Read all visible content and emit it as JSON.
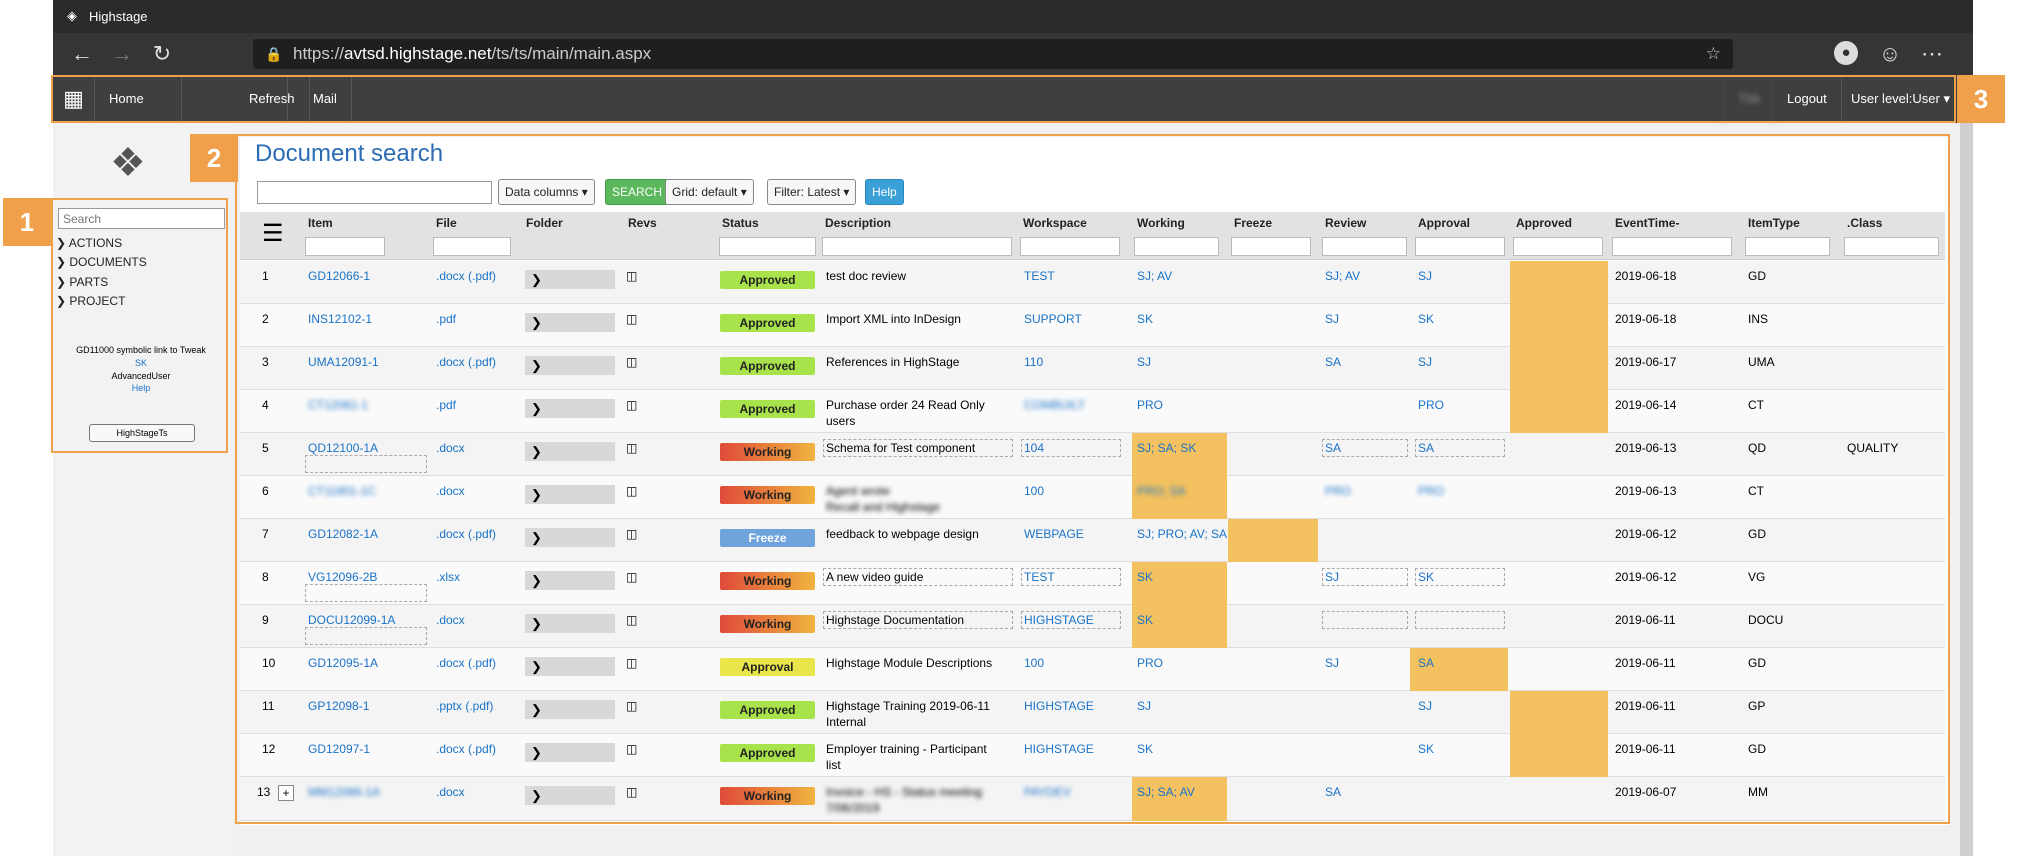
{
  "browser": {
    "title": "Highstage",
    "url_prefix": "https://",
    "url_host": "avtsd.highstage.net",
    "url_path": "/ts/ts/main/main.aspx"
  },
  "menu": {
    "home": "Home",
    "refresh": "Refresh",
    "mail": "Mail",
    "logout": "Logout",
    "user_level": "User level:User",
    "username": "Tbb"
  },
  "badges": [
    "1",
    "2",
    "3"
  ],
  "left_panel": {
    "search_placeholder": "Search",
    "tree": [
      "ACTIONS",
      "DOCUMENTS",
      "PARTS",
      "PROJECT"
    ],
    "info_line": "GD11000 symbolic link to Tweak",
    "user_initials": "SK",
    "user_role": "AdvancedUser",
    "help": "Help",
    "button": "HighStageTs"
  },
  "main": {
    "title": "Document search",
    "data_columns": "Data columns",
    "search": "SEARCH",
    "grid": "Grid: default",
    "filter": "Filter: Latest",
    "help": "Help"
  },
  "columns": [
    "Item",
    "File",
    "Folder",
    "Revs",
    "Status",
    "Description",
    "Workspace",
    "Working",
    "Freeze",
    "Review",
    "Approval",
    "Approved",
    "EventTime-",
    "ItemType",
    ".Class"
  ],
  "rows": [
    {
      "n": "1",
      "item": "GD12066-1",
      "file": ".docx (.pdf)",
      "status": "Approved",
      "desc": "test doc review",
      "desc2": "",
      "ws": "TEST",
      "working": "SJ; AV",
      "freeze": "",
      "review": "SJ; AV",
      "approval": "SJ",
      "time": "2019-06-18",
      "type": "GD",
      "cls": ""
    },
    {
      "n": "2",
      "item": "INS12102-1",
      "file": ".pdf",
      "status": "Approved",
      "desc": "Import XML into InDesign",
      "desc2": "",
      "ws": "SUPPORT",
      "working": "SK",
      "freeze": "",
      "review": "SJ",
      "approval": "SK",
      "time": "2019-06-18",
      "type": "INS",
      "cls": ""
    },
    {
      "n": "3",
      "item": "UMA12091-1",
      "file": ".docx (.pdf)",
      "status": "Approved",
      "desc": "References in HighStage",
      "desc2": "",
      "ws": "110",
      "working": "SJ",
      "freeze": "",
      "review": "SA",
      "approval": "SJ",
      "time": "2019-06-17",
      "type": "UMA",
      "cls": ""
    },
    {
      "n": "4",
      "item": "CT12081-1",
      "file": ".pdf",
      "status": "Approved",
      "desc": "Purchase order 24 Read Only",
      "desc2": "users",
      "ws": "COMBUILT",
      "working": "PRO",
      "freeze": "",
      "review": "",
      "approval": "PRO",
      "time": "2019-06-14",
      "type": "CT",
      "cls": ""
    },
    {
      "n": "5",
      "item": "QD12100-1A",
      "file": ".docx",
      "status": "Working",
      "desc": "Schema for Test component",
      "desc2": "",
      "ws": "104",
      "working": "SJ; SA; SK",
      "freeze": "",
      "review": "SA",
      "approval": "SA",
      "time": "2019-06-13",
      "type": "QD",
      "cls": "QUALITY"
    },
    {
      "n": "6",
      "item": "CT11801-1C",
      "file": ".docx",
      "status": "Working",
      "desc": "Agent wrote",
      "desc2": "Recall and Highstage",
      "ws": "100",
      "working": "PRO; SA",
      "freeze": "",
      "review": "PRO",
      "approval": "PRO",
      "time": "2019-06-13",
      "type": "CT",
      "cls": ""
    },
    {
      "n": "7",
      "item": "GD12082-1A",
      "file": ".docx (.pdf)",
      "status": "Freeze",
      "desc": "feedback to webpage design",
      "desc2": "",
      "ws": "WEBPAGE",
      "working": "SJ; PRO; AV; SA",
      "freeze": "",
      "review": "",
      "approval": "",
      "time": "2019-06-12",
      "type": "GD",
      "cls": ""
    },
    {
      "n": "8",
      "item": "VG12096-2B",
      "file": ".xlsx",
      "status": "Working",
      "desc": "A new video guide",
      "desc2": "",
      "ws": "TEST",
      "working": "SK",
      "freeze": "",
      "review": "SJ",
      "approval": "SK",
      "time": "2019-06-12",
      "type": "VG",
      "cls": ""
    },
    {
      "n": "9",
      "item": "DOCU12099-1A",
      "file": ".docx",
      "status": "Working",
      "desc": "Highstage Documentation",
      "desc2": "",
      "ws": "HIGHSTAGE",
      "working": "SK",
      "freeze": "",
      "review": "",
      "approval": "",
      "time": "2019-06-11",
      "type": "DOCU",
      "cls": ""
    },
    {
      "n": "10",
      "item": "GD12095-1A",
      "file": ".docx (.pdf)",
      "status": "Approval",
      "desc": "Highstage Module Descriptions",
      "desc2": "",
      "ws": "100",
      "working": "PRO",
      "freeze": "",
      "review": "SJ",
      "approval": "SA",
      "time": "2019-06-11",
      "type": "GD",
      "cls": ""
    },
    {
      "n": "11",
      "item": "GP12098-1",
      "file": ".pptx (.pdf)",
      "status": "Approved",
      "desc": "Highstage Training 2019-06-11",
      "desc2": "Internal",
      "ws": "HIGHSTAGE",
      "working": "SJ",
      "freeze": "",
      "review": "",
      "approval": "SJ",
      "time": "2019-06-11",
      "type": "GP",
      "cls": ""
    },
    {
      "n": "12",
      "item": "GD12097-1",
      "file": ".docx (.pdf)",
      "status": "Approved",
      "desc": "Employer training - Participant",
      "desc2": "list",
      "ws": "HIGHSTAGE",
      "working": "SK",
      "freeze": "",
      "review": "",
      "approval": "SK",
      "time": "2019-06-11",
      "type": "GD",
      "cls": ""
    },
    {
      "n": "13",
      "item": "MM12086-1A",
      "file": ".docx",
      "status": "Working",
      "desc": "Invoice - HS - Status meeting",
      "desc2": "7/06/2019",
      "ws": "PAYDEV",
      "working": "SJ; SA; AV",
      "freeze": "",
      "review": "SA",
      "approval": "",
      "time": "2019-06-07",
      "type": "MM",
      "cls": ""
    }
  ],
  "colors": {
    "approved": "#a9e34b",
    "highlight": "#f3c15f",
    "accent": "#f0a04b",
    "link": "#1a73c8"
  }
}
